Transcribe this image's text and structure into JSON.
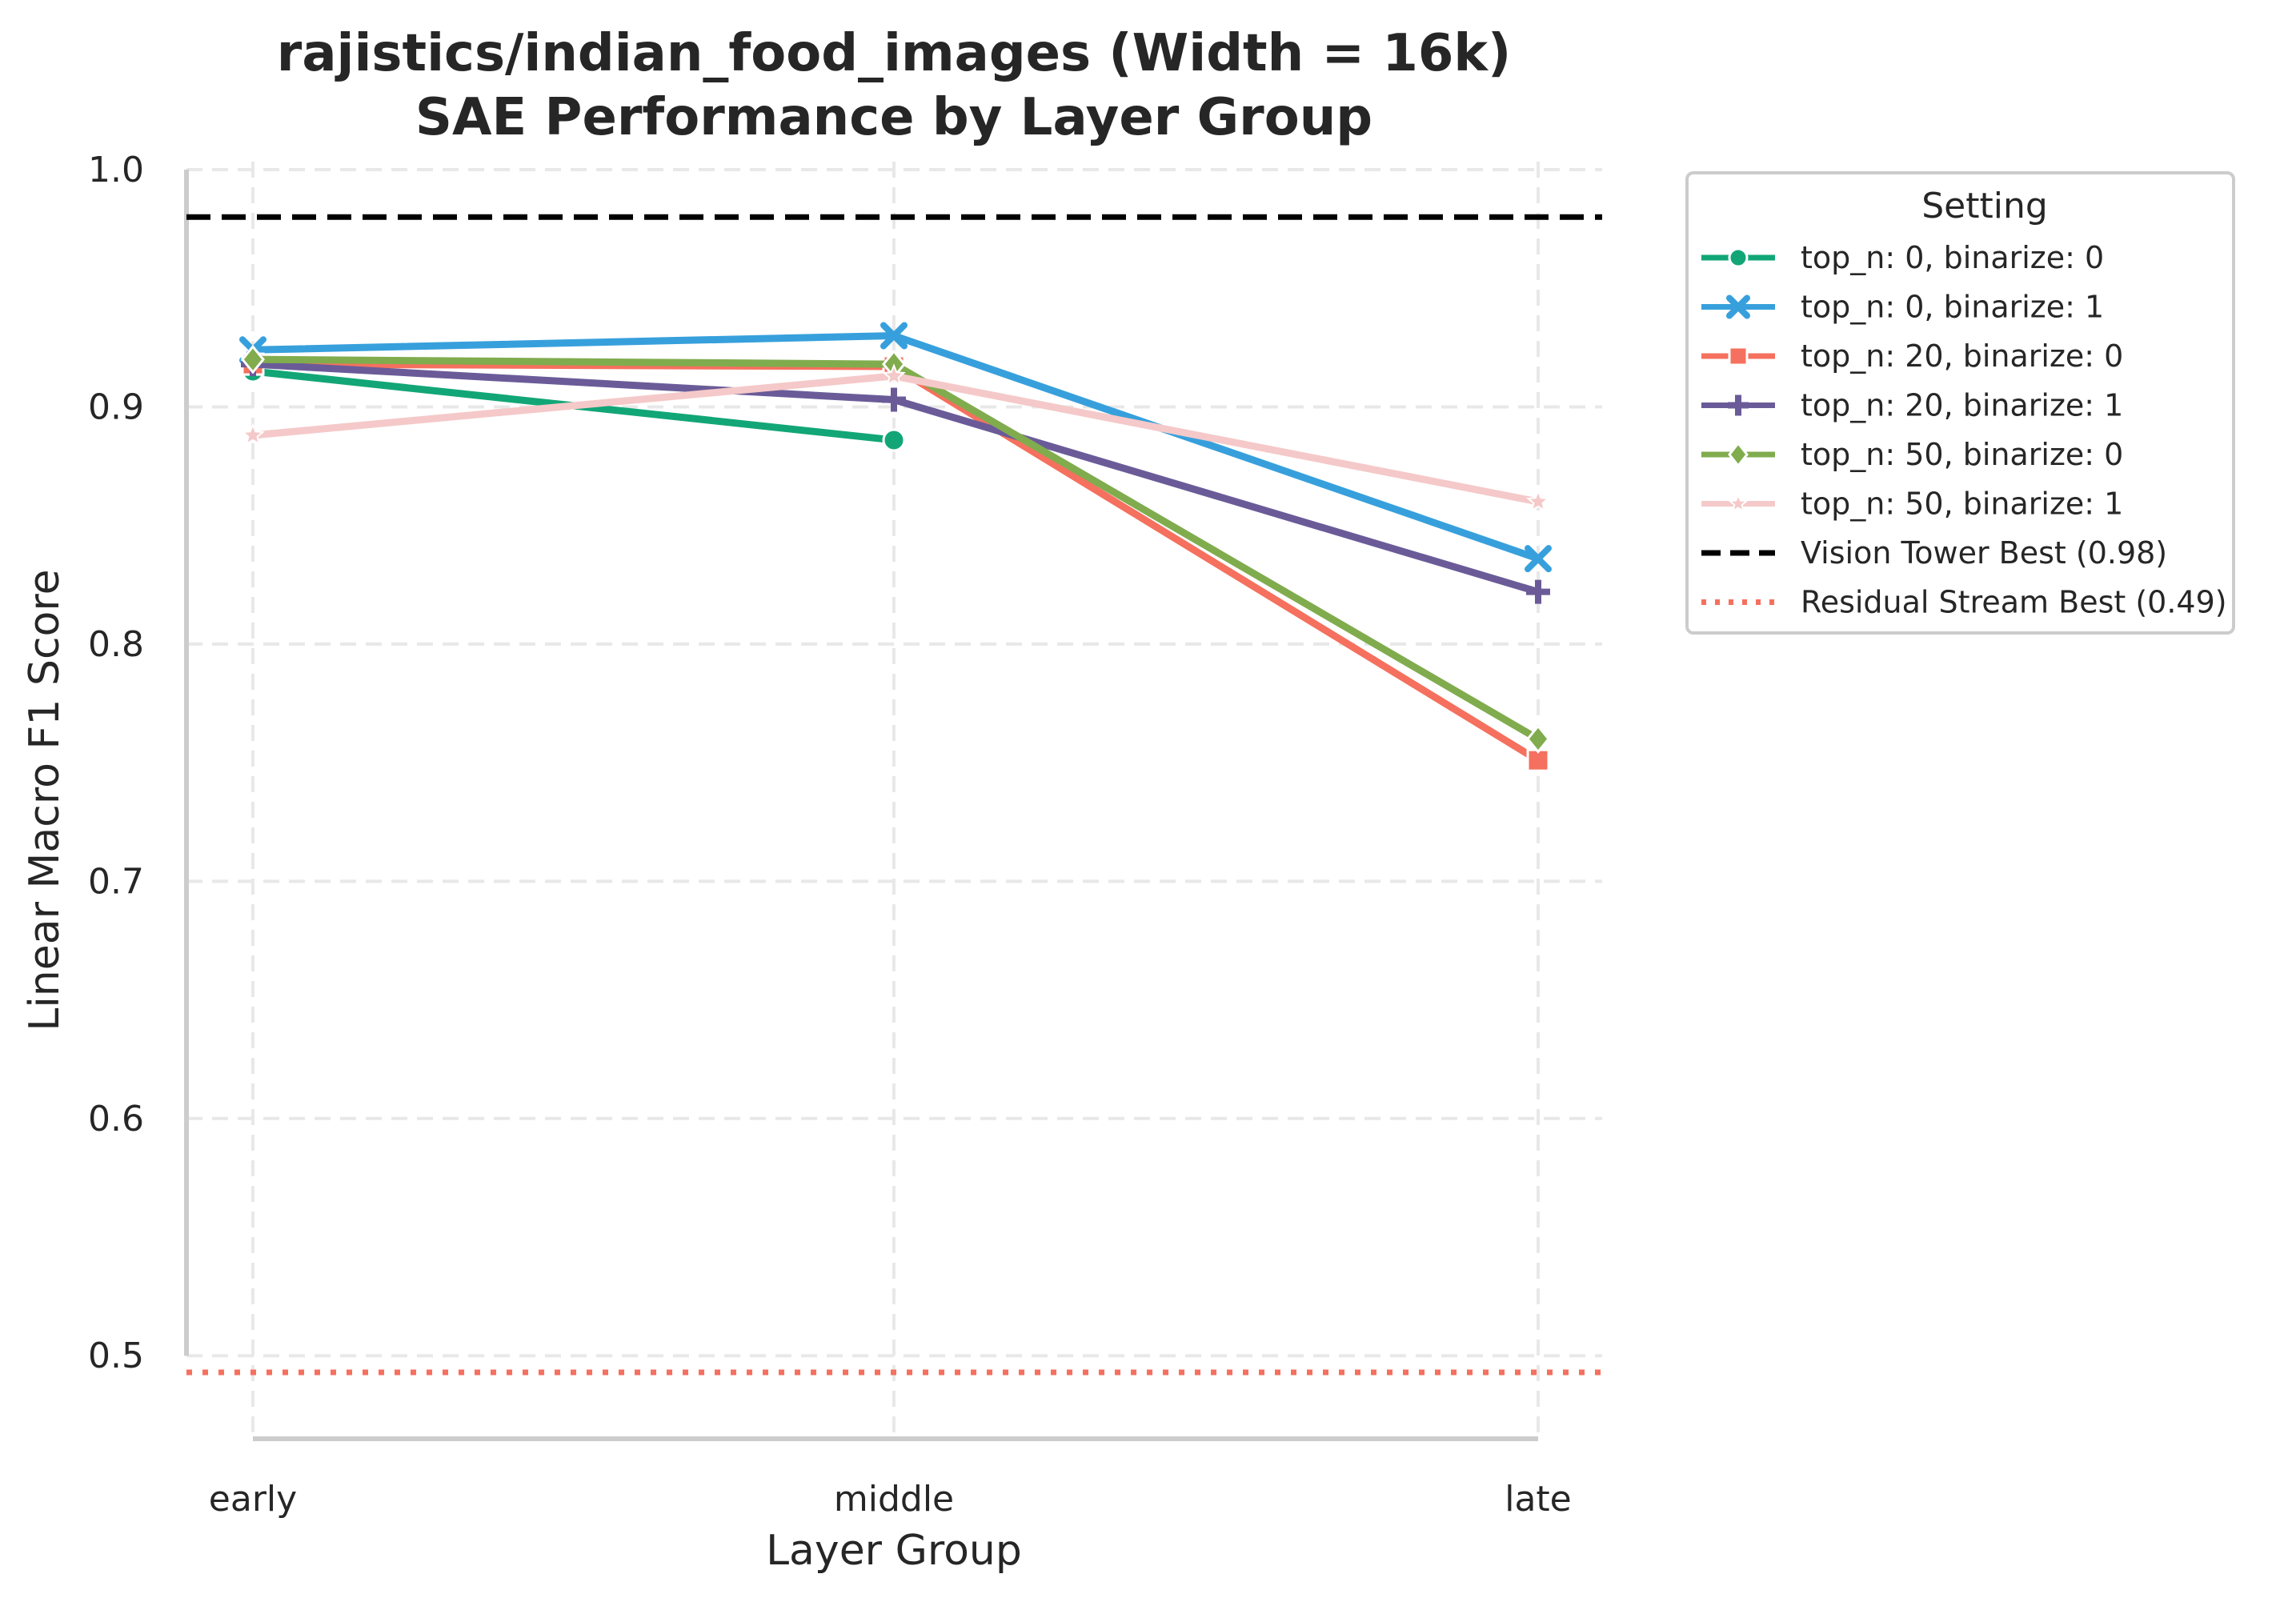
{
  "chart_data": {
    "type": "line",
    "title": "rajistics/indian_food_images (Width = 16k)",
    "subtitle": "SAE Performance by Layer Group",
    "xlabel": "Layer Group",
    "ylabel": "Linear Macro F1 Score",
    "categories": [
      "early",
      "middle",
      "late"
    ],
    "ylim": [
      0.465,
      1.0
    ],
    "yticks": [
      0.5,
      0.6,
      0.7,
      0.8,
      0.9,
      1.0
    ],
    "ytick_labels": [
      "0.5",
      "0.6",
      "0.7",
      "0.8",
      "0.9",
      "1.0"
    ],
    "grid": true,
    "legend_title": "Setting",
    "legend_position": "outside-right",
    "series": [
      {
        "name": "top_n: 0, binarize: 0",
        "color": "#12a676",
        "marker": "circle",
        "values": [
          0.915,
          0.886,
          null
        ]
      },
      {
        "name": "top_n: 0, binarize: 1",
        "color": "#37a0dc",
        "marker": "x",
        "values": [
          0.924,
          0.93,
          0.836
        ]
      },
      {
        "name": "top_n: 20, binarize: 0",
        "color": "#f5705e",
        "marker": "square",
        "values": [
          0.918,
          0.917,
          0.751
        ]
      },
      {
        "name": "top_n: 20, binarize: 1",
        "color": "#6a5b98",
        "marker": "plus",
        "values": [
          0.918,
          0.903,
          0.822
        ]
      },
      {
        "name": "top_n: 50, binarize: 0",
        "color": "#80ac4e",
        "marker": "diamond",
        "values": [
          0.92,
          0.918,
          0.76
        ]
      },
      {
        "name": "top_n: 50, binarize: 1",
        "color": "#f5c9c9",
        "marker": "star",
        "values": [
          0.888,
          0.913,
          0.86
        ]
      }
    ],
    "reference_lines": [
      {
        "name": "Vision Tower Best (0.98)",
        "value": 0.98,
        "color": "#000000",
        "style": "dashed"
      },
      {
        "name": "Residual Stream Best (0.49)",
        "value": 0.493,
        "color": "#f5705e",
        "style": "dotted"
      }
    ]
  }
}
